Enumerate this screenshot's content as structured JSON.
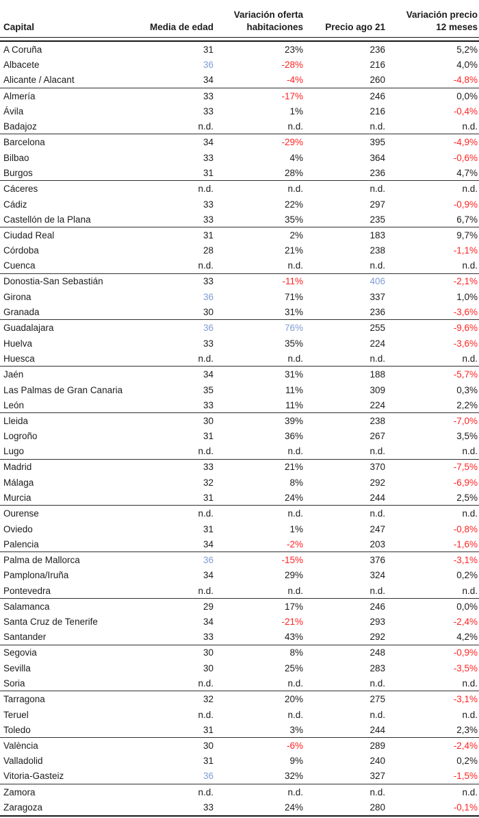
{
  "colors": {
    "text": "#1b1b1b",
    "negative_red": "#ff2222",
    "highlight_blue": "#7e9cd4",
    "border": "#151515"
  },
  "chart_data": {
    "type": "table",
    "columns": [
      "Capital",
      "Media de edad",
      "Variación oferta\nhabitaciones",
      "Precio ago 21",
      "Variación precio\n12 meses"
    ],
    "not_available_label": "n.d.",
    "group_size": 3,
    "legend_note_colors": {
      "neg": "negative value (red)",
      "max": "column maximum (blue)"
    },
    "rows": [
      {
        "capital": "A Coruña",
        "edad": "31",
        "oferta": "23%",
        "precio": "236",
        "var12": "5,2%"
      },
      {
        "capital": "Albacete",
        "edad": "36",
        "oferta": "-28%",
        "precio": "216",
        "var12": "4,0%",
        "hl": {
          "edad": "max",
          "oferta": "neg"
        }
      },
      {
        "capital": "Alicante / Alacant",
        "edad": "34",
        "oferta": "-4%",
        "precio": "260",
        "var12": "-4,8%",
        "hl": {
          "oferta": "neg",
          "var12": "neg"
        }
      },
      {
        "capital": "Almería",
        "edad": "33",
        "oferta": "-17%",
        "precio": "246",
        "var12": "0,0%",
        "hl": {
          "oferta": "neg"
        }
      },
      {
        "capital": "Ávila",
        "edad": "33",
        "oferta": "1%",
        "precio": "216",
        "var12": "-0,4%",
        "hl": {
          "var12": "neg"
        }
      },
      {
        "capital": "Badajoz",
        "edad": "n.d.",
        "oferta": "n.d.",
        "precio": "n.d.",
        "var12": "n.d."
      },
      {
        "capital": "Barcelona",
        "edad": "34",
        "oferta": "-29%",
        "precio": "395",
        "var12": "-4,9%",
        "hl": {
          "oferta": "neg",
          "var12": "neg"
        }
      },
      {
        "capital": "Bilbao",
        "edad": "33",
        "oferta": "4%",
        "precio": "364",
        "var12": "-0,6%",
        "hl": {
          "var12": "neg"
        }
      },
      {
        "capital": "Burgos",
        "edad": "31",
        "oferta": "28%",
        "precio": "236",
        "var12": "4,7%"
      },
      {
        "capital": "Cáceres",
        "edad": "n.d.",
        "oferta": "n.d.",
        "precio": "n.d.",
        "var12": "n.d."
      },
      {
        "capital": "Cádiz",
        "edad": "33",
        "oferta": "22%",
        "precio": "297",
        "var12": "-0,9%",
        "hl": {
          "var12": "neg"
        }
      },
      {
        "capital": "Castellón de la Plana",
        "edad": "33",
        "oferta": "35%",
        "precio": "235",
        "var12": "6,7%"
      },
      {
        "capital": "Ciudad Real",
        "edad": "31",
        "oferta": "2%",
        "precio": "183",
        "var12": "9,7%"
      },
      {
        "capital": "Córdoba",
        "edad": "28",
        "oferta": "21%",
        "precio": "238",
        "var12": "-1,1%",
        "hl": {
          "var12": "neg"
        }
      },
      {
        "capital": "Cuenca",
        "edad": "n.d.",
        "oferta": "n.d.",
        "precio": "n.d.",
        "var12": "n.d."
      },
      {
        "capital": "Donostia-San Sebastián",
        "edad": "33",
        "oferta": "-11%",
        "precio": "406",
        "var12": "-2,1%",
        "hl": {
          "oferta": "neg",
          "precio": "max",
          "var12": "neg"
        }
      },
      {
        "capital": "Girona",
        "edad": "36",
        "oferta": "71%",
        "precio": "337",
        "var12": "1,0%",
        "hl": {
          "edad": "max"
        }
      },
      {
        "capital": "Granada",
        "edad": "30",
        "oferta": "31%",
        "precio": "236",
        "var12": "-3,6%",
        "hl": {
          "var12": "neg"
        }
      },
      {
        "capital": "Guadalajara",
        "edad": "36",
        "oferta": "76%",
        "precio": "255",
        "var12": "-9,6%",
        "hl": {
          "edad": "max",
          "oferta": "max",
          "var12": "neg"
        }
      },
      {
        "capital": "Huelva",
        "edad": "33",
        "oferta": "35%",
        "precio": "224",
        "var12": "-3,6%",
        "hl": {
          "var12": "neg"
        }
      },
      {
        "capital": "Huesca",
        "edad": "n.d.",
        "oferta": "n.d.",
        "precio": "n.d.",
        "var12": "n.d."
      },
      {
        "capital": "Jaén",
        "edad": "34",
        "oferta": "31%",
        "precio": "188",
        "var12": "-5,7%",
        "hl": {
          "var12": "neg"
        }
      },
      {
        "capital": "Las Palmas de Gran Canaria",
        "edad": "35",
        "oferta": "11%",
        "precio": "309",
        "var12": "0,3%"
      },
      {
        "capital": "León",
        "edad": "33",
        "oferta": "11%",
        "precio": "224",
        "var12": "2,2%"
      },
      {
        "capital": "Lleida",
        "edad": "30",
        "oferta": "39%",
        "precio": "238",
        "var12": "-7,0%",
        "hl": {
          "var12": "neg"
        }
      },
      {
        "capital": "Logroño",
        "edad": "31",
        "oferta": "36%",
        "precio": "267",
        "var12": "3,5%"
      },
      {
        "capital": "Lugo",
        "edad": "n.d.",
        "oferta": "n.d.",
        "precio": "n.d.",
        "var12": "n.d."
      },
      {
        "capital": "Madrid",
        "edad": "33",
        "oferta": "21%",
        "precio": "370",
        "var12": "-7,5%",
        "hl": {
          "var12": "neg"
        }
      },
      {
        "capital": "Málaga",
        "edad": "32",
        "oferta": "8%",
        "precio": "292",
        "var12": "-6,9%",
        "hl": {
          "var12": "neg"
        }
      },
      {
        "capital": "Murcia",
        "edad": "31",
        "oferta": "24%",
        "precio": "244",
        "var12": "2,5%"
      },
      {
        "capital": "Ourense",
        "edad": "n.d.",
        "oferta": "n.d.",
        "precio": "n.d.",
        "var12": "n.d."
      },
      {
        "capital": "Oviedo",
        "edad": "31",
        "oferta": "1%",
        "precio": "247",
        "var12": "-0,8%",
        "hl": {
          "var12": "neg"
        }
      },
      {
        "capital": "Palencia",
        "edad": "34",
        "oferta": "-2%",
        "precio": "203",
        "var12": "-1,6%",
        "hl": {
          "oferta": "neg",
          "var12": "neg"
        }
      },
      {
        "capital": "Palma de Mallorca",
        "edad": "36",
        "oferta": "-15%",
        "precio": "376",
        "var12": "-3,1%",
        "hl": {
          "edad": "max",
          "oferta": "neg",
          "var12": "neg"
        }
      },
      {
        "capital": "Pamplona/Iruña",
        "edad": "34",
        "oferta": "29%",
        "precio": "324",
        "var12": "0,2%"
      },
      {
        "capital": "Pontevedra",
        "edad": "n.d.",
        "oferta": "n.d.",
        "precio": "n.d.",
        "var12": "n.d."
      },
      {
        "capital": "Salamanca",
        "edad": "29",
        "oferta": "17%",
        "precio": "246",
        "var12": "0,0%"
      },
      {
        "capital": "Santa Cruz de Tenerife",
        "edad": "34",
        "oferta": "-21%",
        "precio": "293",
        "var12": "-2,4%",
        "hl": {
          "oferta": "neg",
          "var12": "neg"
        }
      },
      {
        "capital": "Santander",
        "edad": "33",
        "oferta": "43%",
        "precio": "292",
        "var12": "4,2%"
      },
      {
        "capital": "Segovia",
        "edad": "30",
        "oferta": "8%",
        "precio": "248",
        "var12": "-0,9%",
        "hl": {
          "var12": "neg"
        }
      },
      {
        "capital": "Sevilla",
        "edad": "30",
        "oferta": "25%",
        "precio": "283",
        "var12": "-3,5%",
        "hl": {
          "var12": "neg"
        }
      },
      {
        "capital": "Soria",
        "edad": "n.d.",
        "oferta": "n.d.",
        "precio": "n.d.",
        "var12": "n.d."
      },
      {
        "capital": "Tarragona",
        "edad": "32",
        "oferta": "20%",
        "precio": "275",
        "var12": "-3,1%",
        "hl": {
          "var12": "neg"
        }
      },
      {
        "capital": "Teruel",
        "edad": "n.d.",
        "oferta": "n.d.",
        "precio": "n.d.",
        "var12": "n.d."
      },
      {
        "capital": "Toledo",
        "edad": "31",
        "oferta": "3%",
        "precio": "244",
        "var12": "2,3%"
      },
      {
        "capital": "València",
        "edad": "30",
        "oferta": "-6%",
        "precio": "289",
        "var12": "-2,4%",
        "hl": {
          "oferta": "neg",
          "var12": "neg"
        }
      },
      {
        "capital": "Valladolid",
        "edad": "31",
        "oferta": "9%",
        "precio": "240",
        "var12": "0,2%"
      },
      {
        "capital": "Vitoria-Gasteiz",
        "edad": "36",
        "oferta": "32%",
        "precio": "327",
        "var12": "-1,5%",
        "hl": {
          "edad": "max",
          "var12": "neg"
        }
      },
      {
        "capital": "Zamora",
        "edad": "n.d.",
        "oferta": "n.d.",
        "precio": "n.d.",
        "var12": "n.d."
      },
      {
        "capital": "Zaragoza",
        "edad": "33",
        "oferta": "24%",
        "precio": "280",
        "var12": "-0,1%",
        "hl": {
          "var12": "neg"
        }
      }
    ]
  }
}
